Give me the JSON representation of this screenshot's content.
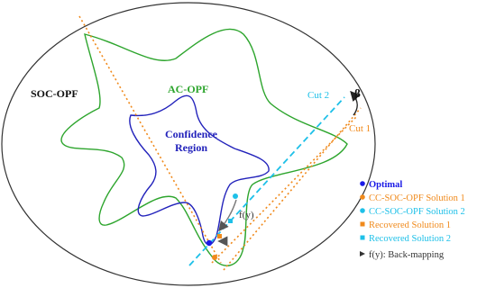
{
  "regions": {
    "soc_opf": "SOC-OPF",
    "ac_opf": "AC-OPF",
    "confidence_line1": "Confidence",
    "confidence_line2": "Region"
  },
  "cuts": {
    "cut1": "Cut 1",
    "cut2": "Cut 2",
    "beta": "β"
  },
  "annotations": {
    "fy": "f(y)"
  },
  "legend": {
    "items": [
      {
        "marker": "dot",
        "color": "#1a1ae6",
        "label": "Optimal"
      },
      {
        "marker": "dot",
        "color": "#f08a1c",
        "label": "CC-SOC-OPF Solution 1"
      },
      {
        "marker": "dot",
        "color": "#1ec0e8",
        "label": "CC-SOC-OPF Solution 2"
      },
      {
        "marker": "square",
        "color": "#f08a1c",
        "label": "Recovered Solution 1"
      },
      {
        "marker": "square",
        "color": "#1ec0e8",
        "label": "Recovered Solution 2"
      },
      {
        "marker": "arrow",
        "color": "#333333",
        "label": "f(y): Back-mapping"
      }
    ]
  },
  "colors": {
    "soc": "#333333",
    "ac": "#2da52d",
    "confidence": "#2222bb",
    "cut1": "#f08a1c",
    "cut2": "#1ec0e8",
    "optimal": "#1a1ae6",
    "arrow": "#555555"
  }
}
